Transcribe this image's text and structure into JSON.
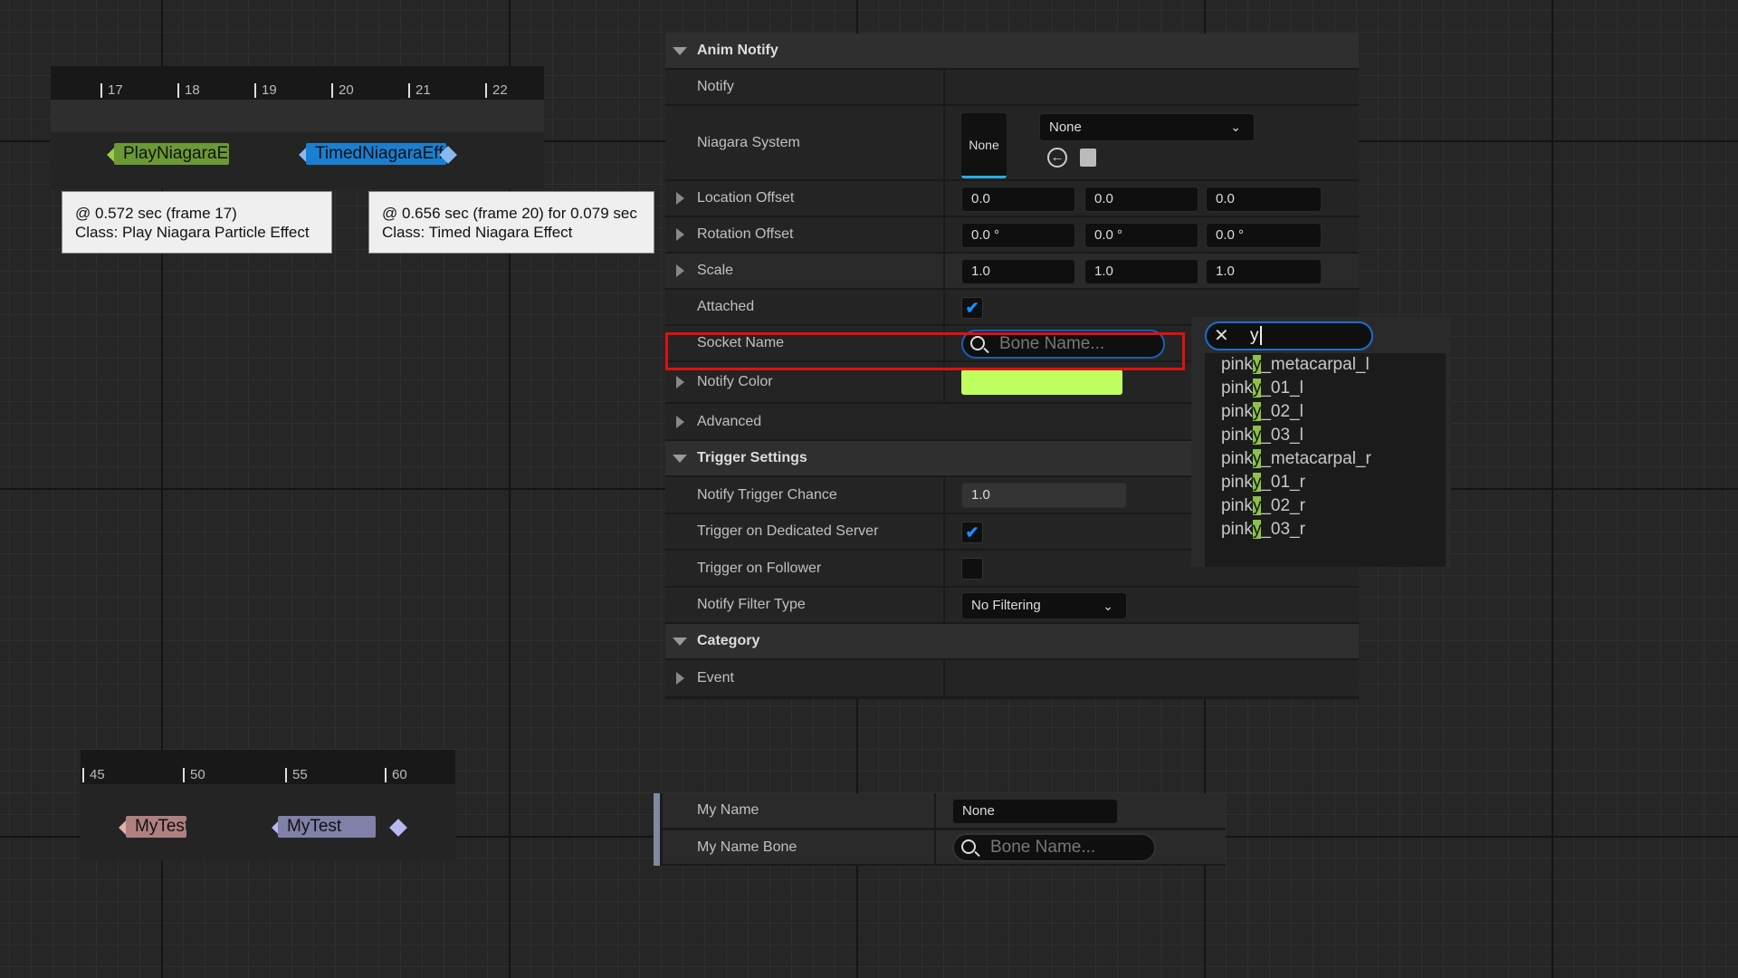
{
  "timeline_top": {
    "ticks": [
      "17",
      "18",
      "19",
      "20",
      "21",
      "22"
    ],
    "notifies": [
      {
        "label": "PlayNiagaraEffec",
        "color": "#6b9a35"
      },
      {
        "label": "TimedNiagaraEffec",
        "color": "#1a7fd0"
      }
    ],
    "tooltips": [
      {
        "line1": "@ 0.572 sec (frame 17)",
        "line2": "Class: Play Niagara Particle Effect"
      },
      {
        "line1": "@ 0.656 sec (frame 20) for 0.079 sec",
        "line2": "Class: Timed Niagara Effect"
      }
    ]
  },
  "timeline_bottom": {
    "ticks": [
      "45",
      "50",
      "55",
      "60"
    ],
    "notifies": [
      {
        "label": "MyTest",
        "color": "#b08080"
      },
      {
        "label": "MyTest",
        "color": "#8080a8"
      }
    ]
  },
  "details": {
    "anim_notify": "Anim Notify",
    "notify": "Notify",
    "niagara_system": {
      "label": "Niagara System",
      "thumb": "None",
      "value": "None"
    },
    "location_offset": {
      "label": "Location Offset",
      "values": [
        "0.0",
        "0.0",
        "0.0"
      ]
    },
    "rotation_offset": {
      "label": "Rotation Offset",
      "values": [
        "0.0 °",
        "0.0 °",
        "0.0 °"
      ]
    },
    "scale": {
      "label": "Scale",
      "values": [
        "1.0",
        "1.0",
        "1.0"
      ]
    },
    "attached": {
      "label": "Attached",
      "checked": true,
      "check": "✔"
    },
    "socket_name": {
      "label": "Socket Name",
      "placeholder": "Bone Name..."
    },
    "notify_color": {
      "label": "Notify Color",
      "color": "#c0ff60"
    },
    "advanced": "Advanced",
    "trigger_settings": "Trigger Settings",
    "trigger_chance": {
      "label": "Notify Trigger Chance",
      "value": "1.0"
    },
    "dedicated_server": {
      "label": "Trigger on Dedicated Server",
      "checked": true,
      "check": "✔"
    },
    "follower": {
      "label": "Trigger on Follower",
      "checked": false
    },
    "filter_type": {
      "label": "Notify Filter Type",
      "value": "No Filtering"
    },
    "category": "Category",
    "event": "Event"
  },
  "bone_dropdown": {
    "query": "y",
    "clear": "✕",
    "items": [
      [
        "pink",
        "y",
        "_metacarpal_l"
      ],
      [
        "pink",
        "y",
        "_01_l"
      ],
      [
        "pink",
        "y",
        "_02_l"
      ],
      [
        "pink",
        "y",
        "_03_l"
      ],
      [
        "pink",
        "y",
        "_metacarpal_r"
      ],
      [
        "pink",
        "y",
        "_01_r"
      ],
      [
        "pink",
        "y",
        "_02_r"
      ],
      [
        "pink",
        "y",
        "_03_r"
      ]
    ]
  },
  "bottom_panel": {
    "my_name": {
      "label": "My Name",
      "value": "None"
    },
    "my_name_bone": {
      "label": "My Name Bone",
      "placeholder": "Bone Name..."
    }
  },
  "highlight_color": "#e01010"
}
